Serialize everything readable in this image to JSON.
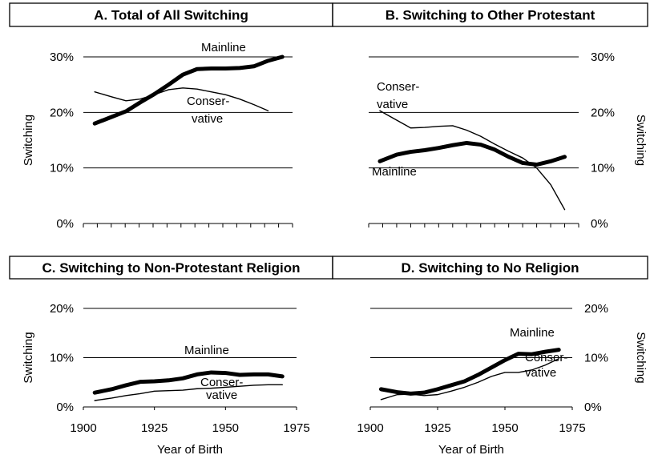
{
  "chart_data": [
    {
      "type": "line",
      "title": "A.  Total of All Switching",
      "y_label": "Switching",
      "y_axis_side": "left",
      "x": [
        1904,
        1910,
        1915,
        1920,
        1925,
        1930,
        1935,
        1940,
        1945,
        1950,
        1955,
        1960,
        1965,
        1970
      ],
      "xlim": [
        1900,
        1975
      ],
      "ylim": [
        0,
        30
      ],
      "yticks": [
        {
          "value": 0,
          "label": "0%"
        },
        {
          "value": 10,
          "label": "10%"
        },
        {
          "value": 20,
          "label": "20%"
        },
        {
          "value": 30,
          "label": "30%"
        }
      ],
      "grid": true,
      "series": [
        {
          "name": "Mainline",
          "color": "#000000",
          "style": "thick",
          "values": [
            18,
            19.2,
            20.2,
            21.8,
            23.3,
            25,
            26.8,
            27.8,
            27.9,
            27.9,
            28,
            28.3,
            29.3,
            30
          ]
        },
        {
          "name": "Conservative",
          "color": "#000000",
          "style": "thin",
          "values": [
            23.7,
            22.8,
            22.1,
            22.4,
            23.2,
            24.1,
            24.4,
            24.2,
            23.7,
            23.2,
            22.4,
            21.4,
            20.3,
            null
          ]
        }
      ],
      "annotations": [
        "Mainline",
        "Conser-",
        "vative"
      ]
    },
    {
      "type": "line",
      "title": "B.  Switching to Other Protestant",
      "y_label": "Switching",
      "y_axis_side": "right",
      "x": [
        1904,
        1910,
        1915,
        1920,
        1925,
        1930,
        1935,
        1940,
        1945,
        1950,
        1955,
        1960,
        1965,
        1970
      ],
      "xlim": [
        1900,
        1975
      ],
      "ylim": [
        0,
        30
      ],
      "yticks": [
        {
          "value": 0,
          "label": "0%"
        },
        {
          "value": 10,
          "label": "10%"
        },
        {
          "value": 20,
          "label": "20%"
        },
        {
          "value": 30,
          "label": "30%"
        }
      ],
      "grid": true,
      "series": [
        {
          "name": "Mainline",
          "color": "#000000",
          "style": "thick",
          "values": [
            11.2,
            12.4,
            12.9,
            13.2,
            13.6,
            14.1,
            14.5,
            14.2,
            13.3,
            12,
            10.9,
            10.6,
            11.2,
            12
          ]
        },
        {
          "name": "Conservative",
          "color": "#000000",
          "style": "thin",
          "values": [
            20.3,
            18.6,
            17.2,
            17.3,
            17.5,
            17.6,
            16.8,
            15.7,
            14.3,
            13,
            11.8,
            10,
            7,
            2.5
          ]
        }
      ],
      "annotations": [
        "Conser-",
        "vative",
        "Mainline"
      ]
    },
    {
      "type": "line",
      "title": "C.  Switching to Non-Protestant Religion",
      "y_label": "Switching",
      "y_axis_side": "left",
      "x_label": "Year of Birth",
      "x": [
        1904,
        1910,
        1915,
        1920,
        1925,
        1930,
        1935,
        1940,
        1945,
        1950,
        1955,
        1960,
        1965,
        1970
      ],
      "xlim": [
        1900,
        1975
      ],
      "xticks": [
        1900,
        1925,
        1950,
        1975
      ],
      "ylim": [
        0,
        20
      ],
      "yticks": [
        {
          "value": 0,
          "label": "0%"
        },
        {
          "value": 10,
          "label": "10%"
        },
        {
          "value": 20,
          "label": "20%"
        }
      ],
      "grid": true,
      "series": [
        {
          "name": "Mainline",
          "color": "#000000",
          "style": "thick",
          "values": [
            2.9,
            3.6,
            4.4,
            5.1,
            5.2,
            5.4,
            5.8,
            6.6,
            7,
            6.9,
            6.5,
            6.6,
            6.6,
            6.2
          ]
        },
        {
          "name": "Conservative",
          "color": "#000000",
          "style": "thin",
          "values": [
            1.3,
            1.8,
            2.3,
            2.7,
            3.2,
            3.3,
            3.4,
            3.7,
            3.8,
            4,
            4.2,
            4.4,
            4.5,
            4.5
          ]
        }
      ],
      "annotations": [
        "Mainline",
        "Conser-",
        "vative"
      ]
    },
    {
      "type": "line",
      "title": "D.  Switching to No Religion",
      "y_label": "Switching",
      "y_axis_side": "right",
      "x_label": "Year of Birth",
      "x": [
        1904,
        1910,
        1915,
        1920,
        1925,
        1930,
        1935,
        1940,
        1945,
        1950,
        1955,
        1960,
        1965,
        1970
      ],
      "xlim": [
        1900,
        1975
      ],
      "xticks": [
        1900,
        1925,
        1950,
        1975
      ],
      "ylim": [
        0,
        20
      ],
      "yticks": [
        {
          "value": 0,
          "label": "0%"
        },
        {
          "value": 10,
          "label": "10%"
        },
        {
          "value": 20,
          "label": "20%"
        }
      ],
      "grid": true,
      "series": [
        {
          "name": "Mainline",
          "color": "#000000",
          "style": "thick",
          "values": [
            3.6,
            3,
            2.7,
            2.9,
            3.6,
            4.4,
            5.2,
            6.5,
            8,
            9.5,
            10.8,
            10.7,
            11.2,
            11.6
          ]
        },
        {
          "name": "Conservative",
          "color": "#000000",
          "style": "thin",
          "values": [
            1.5,
            2.5,
            2.6,
            2.3,
            2.5,
            3.2,
            4,
            5,
            6.2,
            7,
            7,
            7.5,
            8.5,
            9.8
          ]
        }
      ],
      "annotations": [
        "Mainline",
        "Conser-",
        "vative"
      ]
    }
  ]
}
